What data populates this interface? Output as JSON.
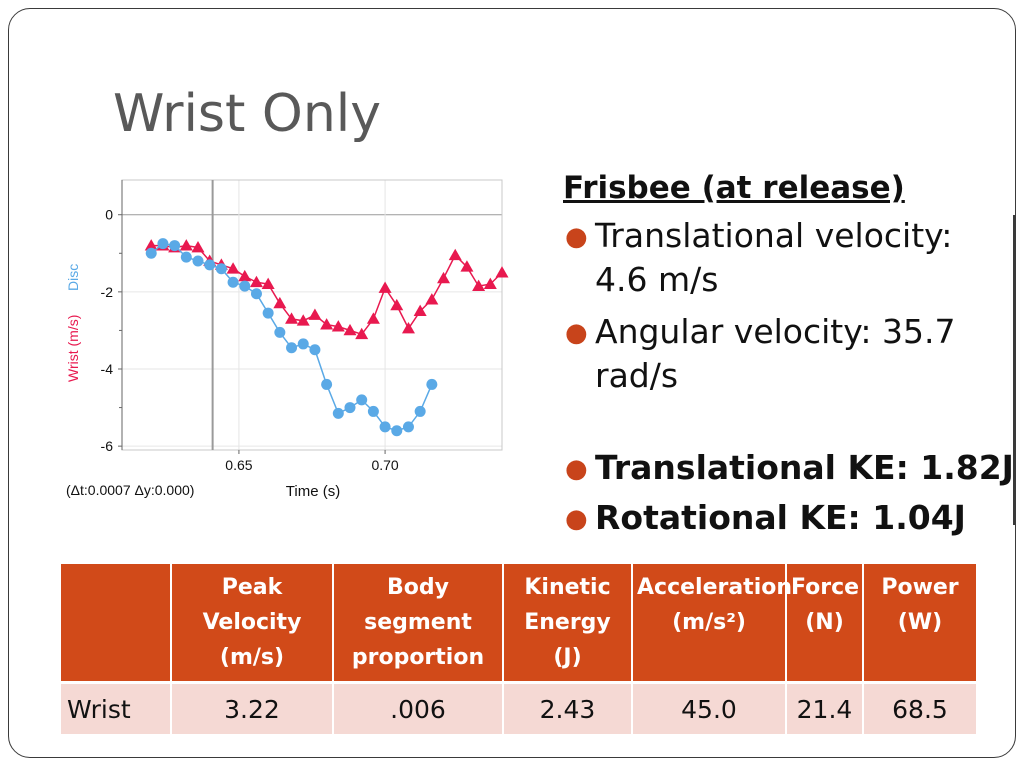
{
  "slide": {
    "title": "Wrist Only"
  },
  "info": {
    "heading": "Frisbee (at release)",
    "bullets": [
      {
        "text": "Translational velocity: 4.6 m/s"
      },
      {
        "text": "Angular velocity: 35.7 rad/s"
      }
    ],
    "bold_bullets": [
      {
        "text": "Translational KE: 1.82J"
      },
      {
        "text": "Rotational KE:  1.04J"
      }
    ],
    "bullet_color": "#c8441b"
  },
  "table": {
    "headers": [
      "",
      "Peak Velocity (m/s)",
      "Body segment proportion",
      "Kinetic Energy (J)",
      "Acceleration (m/s²)",
      "Force (N)",
      "Power (W)"
    ],
    "rows": [
      {
        "label": "Wrist",
        "values": [
          "3.22",
          ".006",
          "2.43",
          "45.0",
          "21.4",
          "68.5"
        ]
      }
    ],
    "header_color": "#d14a19",
    "row_color": "#f5d9d4"
  },
  "chart_data": {
    "type": "scatter",
    "title": "",
    "xlabel": "Time (s)",
    "ylabel_parts": [
      "Wrist (m/s)",
      "Disc"
    ],
    "x_ticks": [
      "0.65",
      "0.70"
    ],
    "y_ticks": [
      "0",
      "-2",
      "-4",
      "-6"
    ],
    "xlim": [
      0.61,
      0.74
    ],
    "ylim": [
      -6.1,
      0.9
    ],
    "cursor_x": 0.641,
    "readout": "(Δt:0.0007 Δy:0.000)",
    "grid": true,
    "series": [
      {
        "name": "Wrist (m/s)",
        "marker": "triangle",
        "color": "#e8194f",
        "x": [
          0.62,
          0.624,
          0.628,
          0.632,
          0.636,
          0.64,
          0.644,
          0.648,
          0.652,
          0.656,
          0.66,
          0.664,
          0.668,
          0.672,
          0.676,
          0.68,
          0.684,
          0.688,
          0.692,
          0.696,
          0.7,
          0.704,
          0.708,
          0.712,
          0.716,
          0.72,
          0.724,
          0.728,
          0.732,
          0.736,
          0.74
        ],
        "y": [
          -0.8,
          -0.8,
          -0.85,
          -0.8,
          -0.85,
          -1.2,
          -1.3,
          -1.4,
          -1.6,
          -1.75,
          -1.8,
          -2.3,
          -2.7,
          -2.75,
          -2.6,
          -2.85,
          -2.9,
          -3.0,
          -3.1,
          -2.7,
          -1.9,
          -2.35,
          -2.95,
          -2.5,
          -2.2,
          -1.65,
          -1.05,
          -1.35,
          -1.85,
          -1.8,
          -1.5
        ]
      },
      {
        "name": "Disc",
        "marker": "circle",
        "color": "#5aa9e6",
        "x": [
          0.62,
          0.624,
          0.628,
          0.632,
          0.636,
          0.64,
          0.644,
          0.648,
          0.652,
          0.656,
          0.66,
          0.664,
          0.668,
          0.672,
          0.676,
          0.68,
          0.684,
          0.688,
          0.692,
          0.696,
          0.7,
          0.704,
          0.708,
          0.712,
          0.716
        ],
        "y": [
          -1.0,
          -0.75,
          -0.8,
          -1.1,
          -1.2,
          -1.3,
          -1.4,
          -1.75,
          -1.85,
          -2.05,
          -2.55,
          -3.05,
          -3.45,
          -3.35,
          -3.5,
          -4.4,
          -5.15,
          -5.0,
          -4.8,
          -5.1,
          -5.5,
          -5.6,
          -5.5,
          -5.1,
          -4.4
        ]
      }
    ]
  }
}
